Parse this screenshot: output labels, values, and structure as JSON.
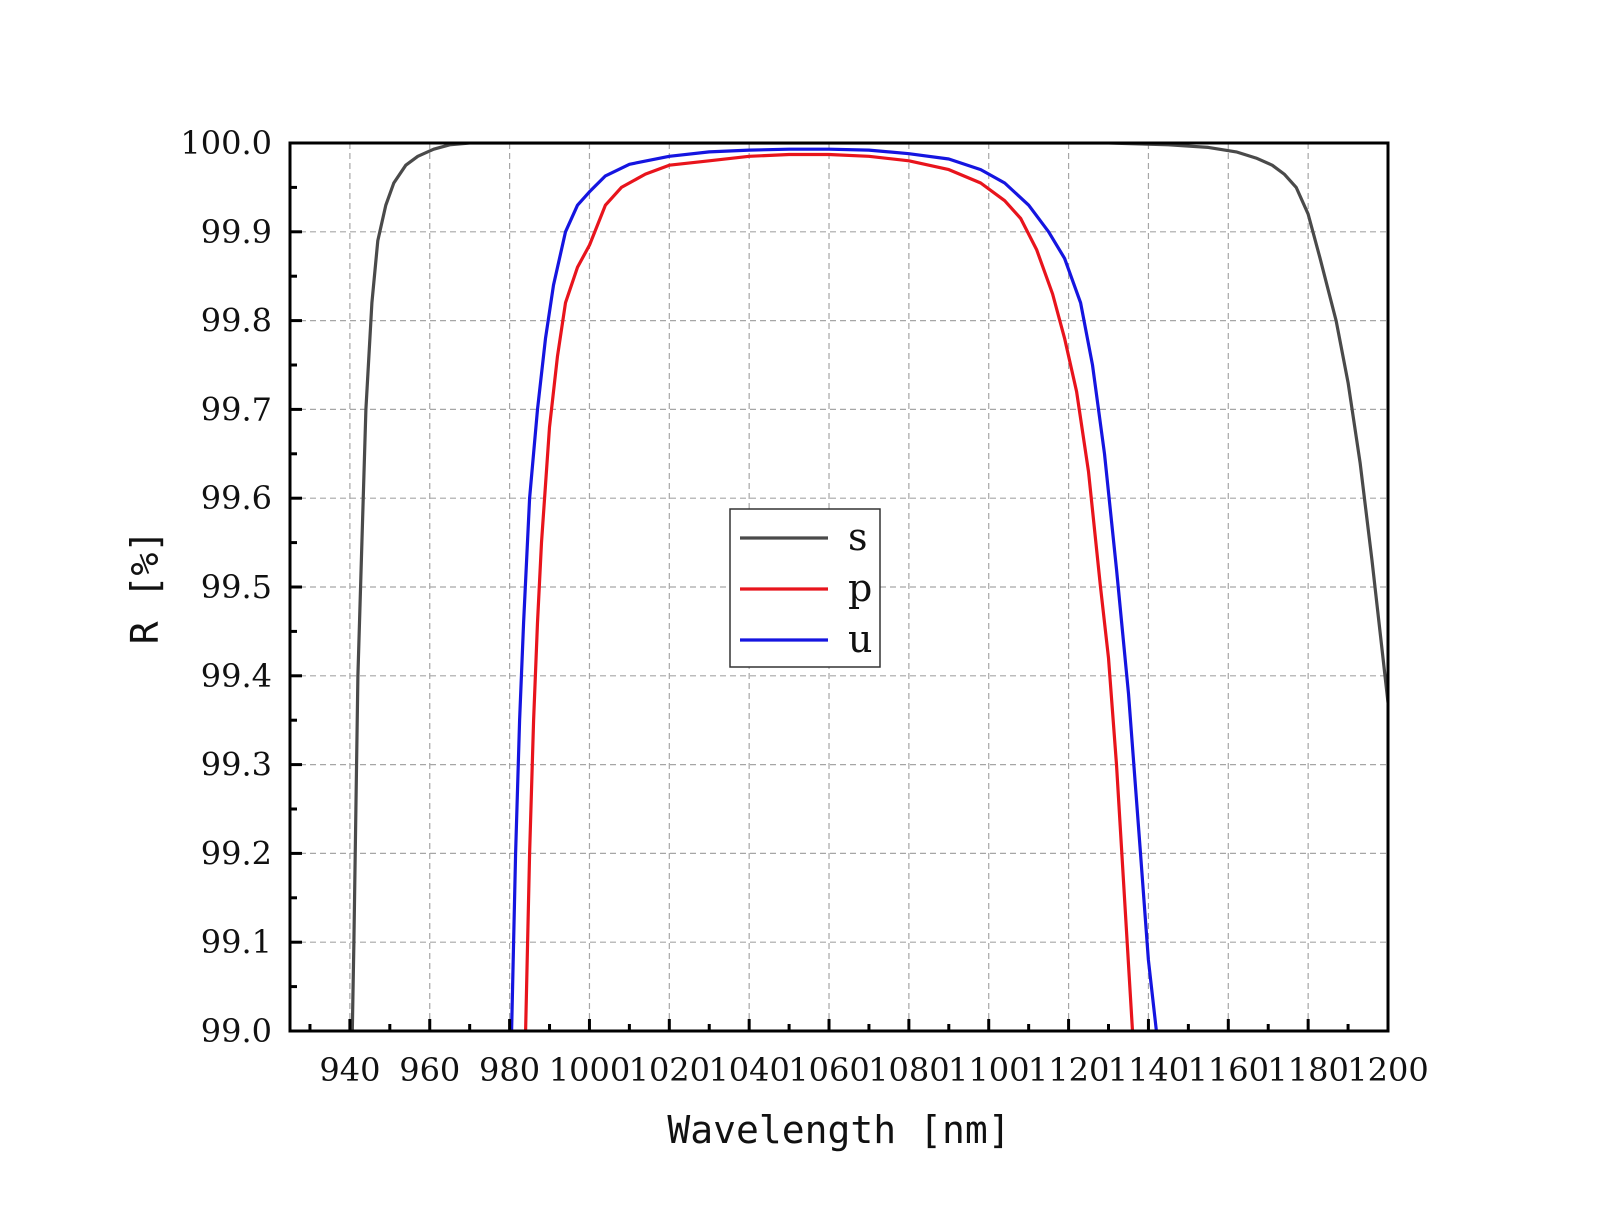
{
  "chart_data": {
    "type": "line",
    "title": "",
    "xlabel": "Wavelength [nm]",
    "ylabel": "R [%]",
    "xlim": [
      925,
      1200
    ],
    "ylim": [
      99.0,
      100.0
    ],
    "xticks": [
      940,
      960,
      980,
      1000,
      1020,
      1040,
      1060,
      1080,
      1100,
      1120,
      1140,
      1160,
      1180,
      1200
    ],
    "xtick_labels": [
      "940",
      "960",
      "980",
      "1000",
      "1020",
      "1040",
      "1060",
      "1080",
      "1100",
      "1120",
      "1140",
      "1160",
      "1180",
      "1200"
    ],
    "yticks": [
      99.0,
      99.1,
      99.2,
      99.3,
      99.4,
      99.5,
      99.6,
      99.7,
      99.8,
      99.9,
      100.0
    ],
    "ytick_labels": [
      "99.0",
      "99.1",
      "99.2",
      "99.3",
      "99.4",
      "99.5",
      "99.6",
      "99.7",
      "99.8",
      "99.9",
      "100.0"
    ],
    "grid": true,
    "legend_position": "center",
    "series": [
      {
        "name": "s",
        "color": "#4a4a4a",
        "points": [
          [
            940.6,
            99.0
          ],
          [
            941.0,
            99.1
          ],
          [
            941.5,
            99.25
          ],
          [
            942.0,
            99.4
          ],
          [
            943.0,
            99.55
          ],
          [
            944.0,
            99.7
          ],
          [
            945.5,
            99.82
          ],
          [
            947.0,
            99.89
          ],
          [
            949.0,
            99.93
          ],
          [
            951.0,
            99.955
          ],
          [
            954.0,
            99.975
          ],
          [
            957.0,
            99.985
          ],
          [
            961.0,
            99.993
          ],
          [
            965.0,
            99.998
          ],
          [
            970.0,
            100.0
          ],
          [
            1000.0,
            100.0
          ],
          [
            1050.0,
            100.0
          ],
          [
            1100.0,
            100.0
          ],
          [
            1130.0,
            100.0
          ],
          [
            1145.0,
            99.998
          ],
          [
            1155.0,
            99.995
          ],
          [
            1162.0,
            99.99
          ],
          [
            1167.0,
            99.983
          ],
          [
            1171.0,
            99.975
          ],
          [
            1174.0,
            99.965
          ],
          [
            1177.0,
            99.95
          ],
          [
            1180.0,
            99.92
          ],
          [
            1183.0,
            99.87
          ],
          [
            1187.0,
            99.8
          ],
          [
            1190.0,
            99.73
          ],
          [
            1193.0,
            99.64
          ],
          [
            1196.0,
            99.53
          ],
          [
            1198.0,
            99.45
          ],
          [
            1200.0,
            99.37
          ]
        ]
      },
      {
        "name": "p",
        "color": "#e8141c",
        "points": [
          [
            984.0,
            99.0
          ],
          [
            985.0,
            99.2
          ],
          [
            986.0,
            99.35
          ],
          [
            987.0,
            99.46
          ],
          [
            988.0,
            99.55
          ],
          [
            990.0,
            99.68
          ],
          [
            992.0,
            99.76
          ],
          [
            994.0,
            99.82
          ],
          [
            997.0,
            99.86
          ],
          [
            1000.0,
            99.885
          ],
          [
            1004.0,
            99.93
          ],
          [
            1008.0,
            99.95
          ],
          [
            1014.0,
            99.965
          ],
          [
            1020.0,
            99.975
          ],
          [
            1030.0,
            99.98
          ],
          [
            1040.0,
            99.985
          ],
          [
            1050.0,
            99.987
          ],
          [
            1060.0,
            99.987
          ],
          [
            1070.0,
            99.985
          ],
          [
            1080.0,
            99.98
          ],
          [
            1090.0,
            99.97
          ],
          [
            1098.0,
            99.955
          ],
          [
            1104.0,
            99.935
          ],
          [
            1108.0,
            99.915
          ],
          [
            1112.0,
            99.88
          ],
          [
            1116.0,
            99.83
          ],
          [
            1119.0,
            99.78
          ],
          [
            1122.0,
            99.72
          ],
          [
            1125.0,
            99.63
          ],
          [
            1128.0,
            99.5
          ],
          [
            1130.0,
            99.42
          ],
          [
            1132.0,
            99.3
          ],
          [
            1134.0,
            99.15
          ],
          [
            1136.0,
            99.0
          ]
        ]
      },
      {
        "name": "u",
        "color": "#1515e0",
        "points": [
          [
            980.5,
            99.0
          ],
          [
            981.5,
            99.2
          ],
          [
            982.5,
            99.35
          ],
          [
            983.5,
            99.46
          ],
          [
            985.0,
            99.6
          ],
          [
            987.0,
            99.7
          ],
          [
            989.0,
            99.78
          ],
          [
            991.0,
            99.84
          ],
          [
            994.0,
            99.9
          ],
          [
            997.0,
            99.93
          ],
          [
            1000.0,
            99.945
          ],
          [
            1004.0,
            99.963
          ],
          [
            1010.0,
            99.976
          ],
          [
            1020.0,
            99.985
          ],
          [
            1030.0,
            99.99
          ],
          [
            1040.0,
            99.992
          ],
          [
            1050.0,
            99.993
          ],
          [
            1060.0,
            99.993
          ],
          [
            1070.0,
            99.992
          ],
          [
            1080.0,
            99.988
          ],
          [
            1090.0,
            99.982
          ],
          [
            1098.0,
            99.97
          ],
          [
            1104.0,
            99.955
          ],
          [
            1110.0,
            99.93
          ],
          [
            1115.0,
            99.9
          ],
          [
            1119.0,
            99.87
          ],
          [
            1123.0,
            99.82
          ],
          [
            1126.0,
            99.75
          ],
          [
            1129.0,
            99.65
          ],
          [
            1132.0,
            99.52
          ],
          [
            1135.0,
            99.38
          ],
          [
            1138.0,
            99.2
          ],
          [
            1140.0,
            99.08
          ],
          [
            1142.0,
            99.0
          ]
        ]
      }
    ]
  }
}
